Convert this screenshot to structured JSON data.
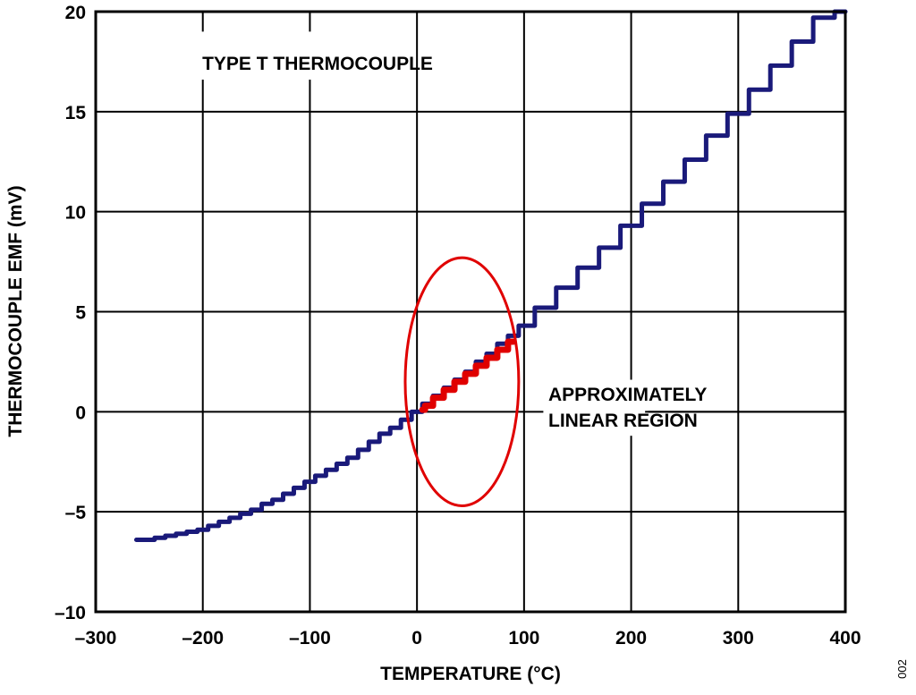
{
  "chart_data": {
    "type": "line",
    "title": "",
    "xlabel": "TEMPERATURE (°C)",
    "ylabel": "THERMOCOUPLE EMF (mV)",
    "xlim": [
      -300,
      400
    ],
    "ylim": [
      -10,
      20
    ],
    "x_ticks": [
      -300,
      -200,
      -100,
      0,
      100,
      200,
      300,
      400
    ],
    "x_tick_labels": [
      "–300",
      "–200",
      "–100",
      "0",
      "100",
      "200",
      "300",
      "400"
    ],
    "y_ticks": [
      -10,
      -5,
      0,
      5,
      10,
      15,
      20
    ],
    "y_tick_labels": [
      "–10",
      "–5",
      "0",
      "5",
      "10",
      "15",
      "20"
    ],
    "grid": true,
    "series": [
      {
        "color": "#1a1a7a",
        "x": [
          -262,
          -250,
          -240,
          -230,
          -220,
          -210,
          -200,
          -190,
          -180,
          -170,
          -160,
          -150,
          -140,
          -130,
          -120,
          -110,
          -100,
          -90,
          -80,
          -70,
          -60,
          -50,
          -40,
          -30,
          -20,
          -10,
          0,
          10,
          20,
          30,
          40,
          50,
          60,
          70,
          80,
          90,
          100,
          120,
          140,
          160,
          180,
          200,
          220,
          240,
          260,
          280,
          300,
          320,
          340,
          360,
          380,
          400
        ],
        "y": [
          -6.4,
          -6.4,
          -6.3,
          -6.2,
          -6.1,
          -6.0,
          -5.9,
          -5.7,
          -5.5,
          -5.3,
          -5.1,
          -4.9,
          -4.6,
          -4.4,
          -4.1,
          -3.8,
          -3.5,
          -3.2,
          -2.9,
          -2.6,
          -2.3,
          -1.9,
          -1.5,
          -1.1,
          -0.8,
          -0.4,
          0.0,
          0.4,
          0.8,
          1.2,
          1.6,
          2.0,
          2.5,
          2.9,
          3.4,
          3.8,
          4.3,
          5.2,
          6.2,
          7.2,
          8.2,
          9.3,
          10.4,
          11.5,
          12.6,
          13.8,
          14.9,
          16.1,
          17.3,
          18.5,
          19.7,
          20.0
        ]
      },
      {
        "color": "#e00000",
        "x": [
          5,
          10,
          20,
          30,
          40,
          50,
          60,
          70,
          80,
          90
        ],
        "y": [
          0.1,
          0.3,
          0.7,
          1.1,
          1.5,
          1.9,
          2.3,
          2.7,
          3.1,
          3.5
        ]
      }
    ],
    "annotations": [
      {
        "text": "TYPE T THERMOCOUPLE"
      },
      {
        "text": "APPROXIMATELY",
        "line": 1
      },
      {
        "text": "LINEAR REGION",
        "line": 2
      }
    ],
    "highlight_ellipse": {
      "color": "#e00000",
      "center": [
        42,
        1.5
      ],
      "rx_data": 53,
      "ry_data": 6.2
    },
    "figure_id": "002"
  }
}
